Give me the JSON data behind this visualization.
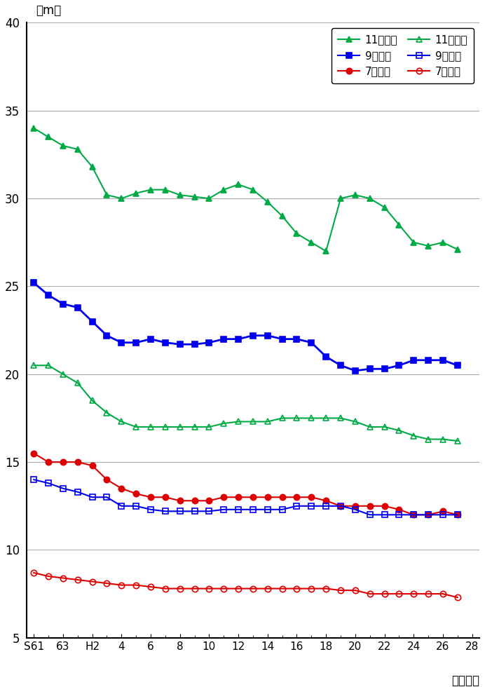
{
  "x_labels": [
    "S61",
    "63",
    "H2",
    "4",
    "6",
    "8",
    "10",
    "12",
    "14",
    "16",
    "18",
    "20",
    "22",
    "24",
    "26",
    "28"
  ],
  "x_positions": [
    0,
    2,
    4,
    6,
    8,
    10,
    12,
    14,
    16,
    18,
    20,
    22,
    24,
    26,
    28,
    30
  ],
  "series": {
    "11歳男子": {
      "color": "#00aa44",
      "marker": "^",
      "fillstyle": "full",
      "linewidth": 1.5,
      "markersize": 6,
      "data": [
        34.0,
        33.5,
        33.0,
        32.8,
        31.8,
        30.2,
        30.0,
        30.3,
        30.5,
        30.5,
        30.2,
        30.1,
        30.0,
        30.5,
        30.8,
        30.5,
        29.8,
        29.0,
        28.0,
        27.5,
        27.0,
        30.0,
        30.2,
        30.0,
        29.5,
        28.5,
        27.5,
        27.3,
        27.5,
        27.1
      ]
    },
    "9歳男子": {
      "color": "#0000ee",
      "marker": "s",
      "fillstyle": "full",
      "linewidth": 2.0,
      "markersize": 6,
      "data": [
        25.2,
        24.5,
        24.0,
        23.8,
        23.0,
        22.2,
        21.8,
        21.8,
        22.0,
        21.8,
        21.7,
        21.7,
        21.8,
        22.0,
        22.0,
        22.2,
        22.2,
        22.0,
        22.0,
        21.8,
        21.0,
        20.5,
        20.2,
        20.3,
        20.3,
        20.5,
        20.8,
        20.8,
        20.8,
        20.5
      ]
    },
    "7歳男子": {
      "color": "#dd0000",
      "marker": "o",
      "fillstyle": "full",
      "linewidth": 1.5,
      "markersize": 6,
      "data": [
        15.5,
        15.0,
        15.0,
        15.0,
        14.8,
        14.0,
        13.5,
        13.2,
        13.0,
        13.0,
        12.8,
        12.8,
        12.8,
        13.0,
        13.0,
        13.0,
        13.0,
        13.0,
        13.0,
        13.0,
        12.8,
        12.5,
        12.5,
        12.5,
        12.5,
        12.3,
        12.0,
        12.0,
        12.2,
        12.0
      ]
    },
    "11歳女子": {
      "color": "#00aa44",
      "marker": "^",
      "fillstyle": "none",
      "linewidth": 1.5,
      "markersize": 6,
      "data": [
        20.5,
        20.5,
        20.0,
        19.5,
        18.5,
        17.8,
        17.3,
        17.0,
        17.0,
        17.0,
        17.0,
        17.0,
        17.0,
        17.2,
        17.3,
        17.3,
        17.3,
        17.5,
        17.5,
        17.5,
        17.5,
        17.5,
        17.3,
        17.0,
        17.0,
        16.8,
        16.5,
        16.3,
        16.3,
        16.2
      ]
    },
    "9歳女子": {
      "color": "#0000ee",
      "marker": "s",
      "fillstyle": "none",
      "linewidth": 1.5,
      "markersize": 6,
      "data": [
        14.0,
        13.8,
        13.5,
        13.3,
        13.0,
        13.0,
        12.5,
        12.5,
        12.3,
        12.2,
        12.2,
        12.2,
        12.2,
        12.3,
        12.3,
        12.3,
        12.3,
        12.3,
        12.5,
        12.5,
        12.5,
        12.5,
        12.3,
        12.0,
        12.0,
        12.0,
        12.0,
        12.0,
        12.0,
        12.0
      ]
    },
    "7歳女子": {
      "color": "#dd0000",
      "marker": "o",
      "fillstyle": "none",
      "linewidth": 1.5,
      "markersize": 6,
      "data": [
        8.7,
        8.5,
        8.4,
        8.3,
        8.2,
        8.1,
        8.0,
        8.0,
        7.9,
        7.8,
        7.8,
        7.8,
        7.8,
        7.8,
        7.8,
        7.8,
        7.8,
        7.8,
        7.8,
        7.8,
        7.8,
        7.7,
        7.7,
        7.5,
        7.5,
        7.5,
        7.5,
        7.5,
        7.5,
        7.3
      ]
    }
  },
  "xlim": [
    -0.5,
    30.5
  ],
  "ylim": [
    5,
    40
  ],
  "yticks": [
    5,
    10,
    15,
    20,
    25,
    30,
    35,
    40
  ],
  "ylabel": "（m）",
  "xlabel": "（年度）",
  "background_color": "#ffffff",
  "grid_color": "#aaaaaa",
  "legend_order": [
    "11歳男子",
    "9歳男子",
    "7歳男子",
    "11歳女子",
    "9歳女子",
    "7歳女子"
  ]
}
